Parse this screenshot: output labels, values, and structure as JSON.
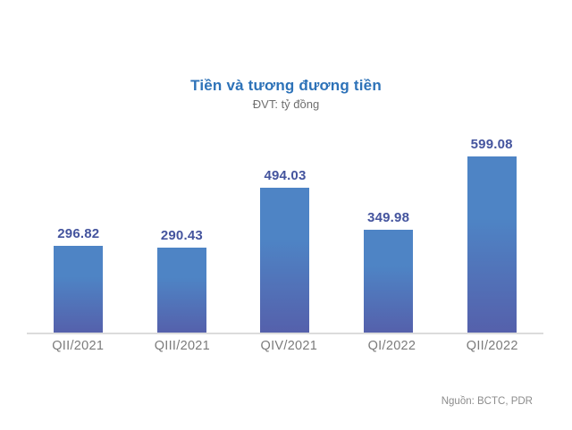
{
  "header": {
    "title": "Tiền và tương đương tiền",
    "subtitle": "ĐVT: tỷ đồng"
  },
  "footer": {
    "source": "Nguồn: BCTC, PDR"
  },
  "chart_data": {
    "type": "bar",
    "categories": [
      "QII/2021",
      "QIII/2021",
      "QIV/2021",
      "QI/2022",
      "QII/2022"
    ],
    "values": [
      296.82,
      290.43,
      494.03,
      349.98,
      599.08
    ],
    "title": "Tiền và tương đương tiền",
    "subtitle": "ĐVT: tỷ đồng",
    "xlabel": "",
    "ylabel": "tỷ đồng",
    "ylim": [
      0,
      650
    ],
    "grid": false,
    "legend": false,
    "data_labels": true,
    "baseline_axis_only": true
  },
  "colors": {
    "title": "#2d72b8",
    "value_label": "#44549e",
    "bar_top": "#4e84c5",
    "bar_bottom": "#5560ab",
    "axis_line": "#dcdcdc",
    "axis_label": "#7b7b7b",
    "source": "#8c8c8c"
  }
}
